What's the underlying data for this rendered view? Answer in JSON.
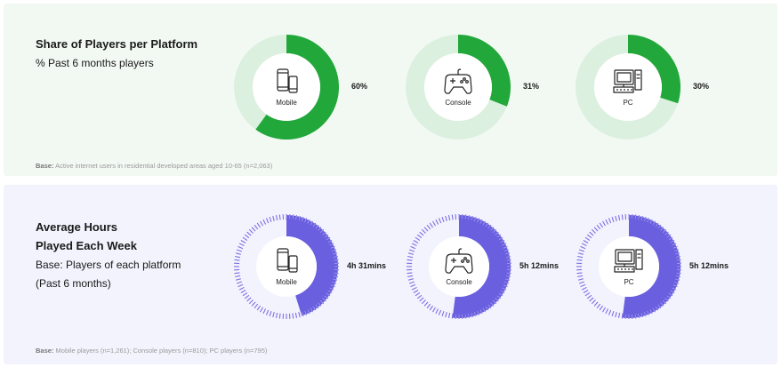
{
  "colors": {
    "share_accent": "#22a83a",
    "share_track": "#dcf0df",
    "hours_accent": "#6a5fdf",
    "hours_track": "#7a70e4"
  },
  "share": {
    "title": "Share of Players per Platform",
    "subtitle": "% Past 6 months players",
    "base_label": "Base:",
    "base_text": "Active internet users in residential developed areas aged 10-65 (n=2,063)"
  },
  "hours": {
    "title_line1": "Average Hours",
    "title_line2": "Played Each Week",
    "subtitle_line1": "Base: Players of each platform",
    "subtitle_line2": "(Past 6 months)",
    "base_label": "Base:",
    "base_text": "Mobile players (n=1,261); Console players (n=810); PC players (n=795)"
  },
  "chart_data": [
    {
      "type": "pie",
      "title": "Share of Players per Platform",
      "subtitle": "% Past 6 months players",
      "categories": [
        "Mobile",
        "Console",
        "PC"
      ],
      "values": [
        60,
        31,
        30
      ],
      "value_labels": [
        "60%",
        "31%",
        "30%"
      ],
      "icons": [
        "mobile-phones-icon",
        "gamepad-icon",
        "desktop-pc-icon"
      ]
    },
    {
      "type": "pie",
      "title": "Average Hours Played Each Week",
      "subtitle": "Base: Players of each platform (Past 6 months)",
      "categories": [
        "Mobile",
        "Console",
        "PC"
      ],
      "values": [
        4.52,
        5.2,
        5.2
      ],
      "value_labels": [
        "4h 31mins",
        "5h 12mins",
        "5h 12mins"
      ],
      "icons": [
        "mobile-phones-icon",
        "gamepad-icon",
        "desktop-pc-icon"
      ]
    }
  ]
}
